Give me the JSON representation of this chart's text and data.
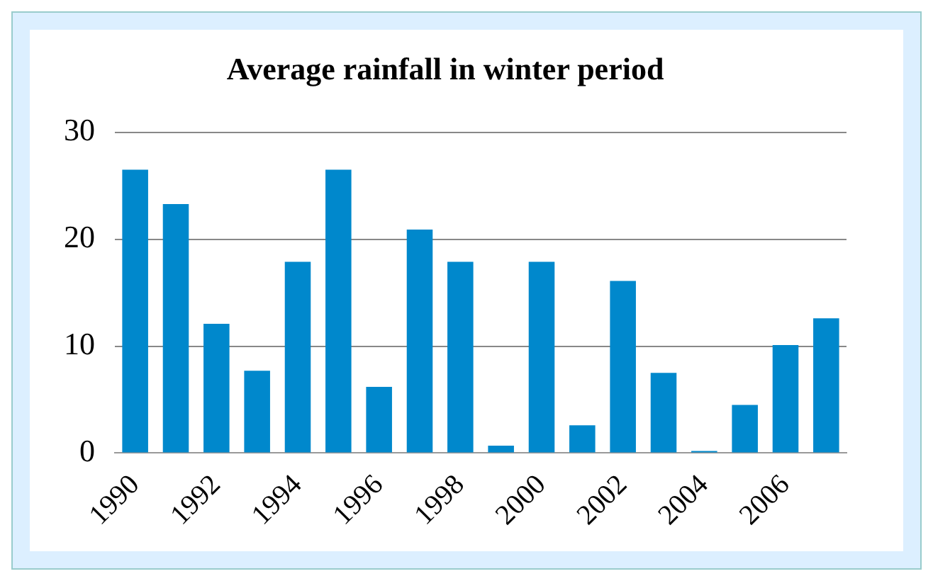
{
  "chart_data": {
    "type": "bar",
    "title": "Average rainfall in winter period",
    "categories": [
      "1990",
      null,
      "1992",
      null,
      "1994",
      null,
      "1996",
      null,
      "1998",
      null,
      "2000",
      null,
      "2002",
      null,
      "2004",
      null,
      "2006",
      null
    ],
    "values": [
      26.5,
      23.3,
      12.1,
      7.7,
      17.9,
      26.5,
      6.2,
      20.9,
      17.9,
      0.7,
      17.9,
      2.6,
      16.1,
      7.5,
      0.2,
      4.5,
      10.1,
      12.6
    ],
    "color": "#0088cc",
    "ylim": [
      0,
      30
    ],
    "yticks": [
      0,
      10,
      20,
      30
    ],
    "grid": "y"
  }
}
